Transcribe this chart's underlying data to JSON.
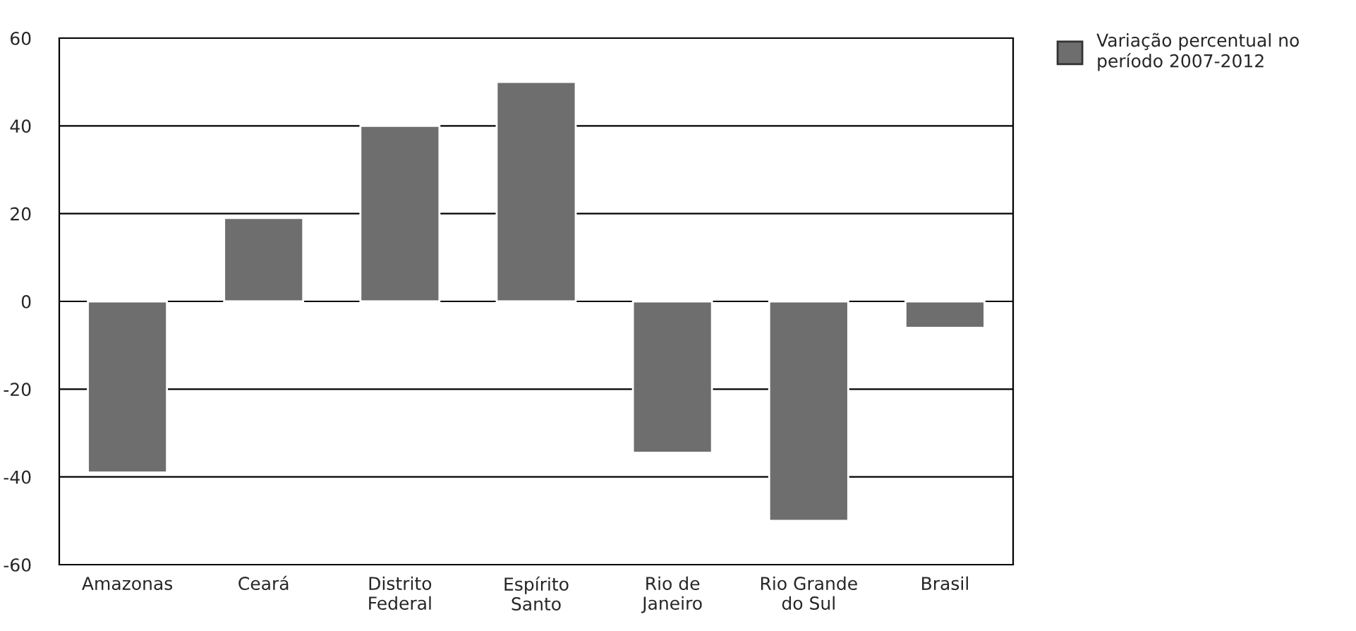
{
  "chart_data": {
    "type": "bar",
    "categories": [
      "Amazonas",
      "Ceará",
      "Distrito\nFederal",
      "Espírito\nSanto",
      "Rio de\nJaneiro",
      "Rio Grande\ndo Sul",
      "Brasil"
    ],
    "series": [
      {
        "name": "Variação percentual no\nperíodo 2007-2012",
        "color": "#6e6e6e",
        "values": [
          -39,
          19,
          40,
          50,
          -34.5,
          -50,
          -6
        ]
      }
    ],
    "ylim": [
      -60,
      60
    ],
    "yticks": [
      -60,
      -40,
      -20,
      0,
      20,
      40,
      60
    ],
    "grid": "y",
    "legend": "top right"
  }
}
